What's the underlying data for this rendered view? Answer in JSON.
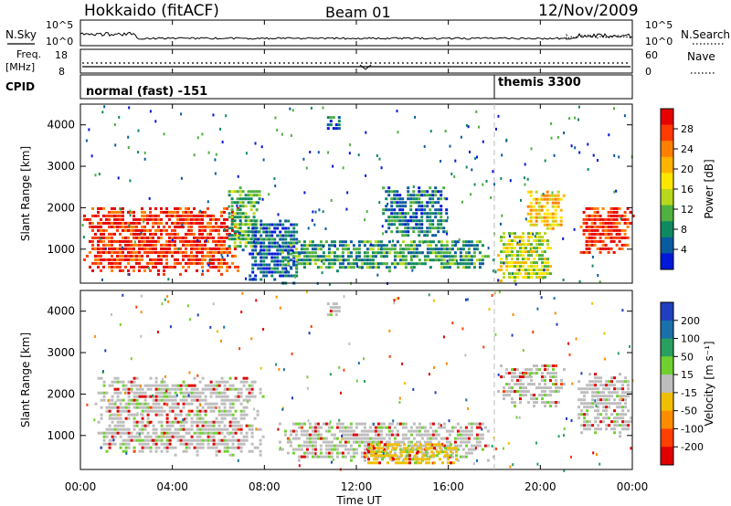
{
  "header": {
    "station": "Hokkaido (fitACF)",
    "beam": "Beam 01",
    "date": "12/Nov/2009"
  },
  "noise_panel": {
    "left_label": "N.Sky",
    "right_label": "N.Search",
    "left_ticks": [
      "10^5",
      "10^0"
    ],
    "right_ticks": [
      "10^5",
      "10^0"
    ]
  },
  "freq_panel": {
    "left_label_line1": "Freq.",
    "left_label_line2": "[MHz]",
    "left_ticks": [
      "18",
      "8"
    ],
    "right_label": "Nave",
    "right_ticks": [
      "60",
      "0"
    ]
  },
  "cpid_panel": {
    "label": "CPID",
    "segments": [
      {
        "name": "normal (fast) -151",
        "start_hour": 0,
        "end_hour": 18
      },
      {
        "name": "themis 3300",
        "start_hour": 18,
        "end_hour": 24
      }
    ]
  },
  "time_axis": {
    "label": "Time UT",
    "ticks": [
      "00:00",
      "04:00",
      "08:00",
      "12:00",
      "16:00",
      "20:00",
      "00:00"
    ]
  },
  "range_axis": {
    "label": "Slant Range [km]",
    "ticks": [
      "1000",
      "2000",
      "3000",
      "4000"
    ]
  },
  "power_scale": {
    "title": "Power [dB]",
    "labels": [
      "28",
      "24",
      "20",
      "16",
      "12",
      "8",
      "4"
    ],
    "colors": [
      "#e60000",
      "#ff3a00",
      "#ff8000",
      "#ffb400",
      "#ffe600",
      "#b8d81e",
      "#50b040",
      "#0f8a60",
      "#0a5aa0",
      "#0018d8"
    ]
  },
  "velocity_scale": {
    "title": "Velocity [m s⁻¹]",
    "labels": [
      "200",
      "100",
      "50",
      "15",
      "-15",
      "-50",
      "-100",
      "-200"
    ],
    "colors": [
      "#1f3fc0",
      "#1a70a8",
      "#2aa060",
      "#70d030",
      "#bdbdbd",
      "#f0c000",
      "#ff8c00",
      "#ff4000",
      "#e00000"
    ]
  },
  "chart_data": [
    {
      "type": "heatmap",
      "name": "power",
      "x_label": "Time UT",
      "y_label": "Slant Range [km]",
      "x_range_hours": [
        0,
        24
      ],
      "y_range_km": [
        180,
        4500
      ],
      "scale_label": "Power [dB]",
      "regions": [
        {
          "t": [
            0.0,
            7.0
          ],
          "r": [
            400,
            2100
          ],
          "value_db": 28
        },
        {
          "t": [
            6.3,
            7.8
          ],
          "r": [
            900,
            2600
          ],
          "value_db": 12
        },
        {
          "t": [
            7.2,
            9.5
          ],
          "r": [
            200,
            1800
          ],
          "value_db": 6
        },
        {
          "t": [
            8.5,
            18.0
          ],
          "r": [
            500,
            1300
          ],
          "value_db": 10
        },
        {
          "t": [
            13.0,
            16.0
          ],
          "r": [
            1300,
            2600
          ],
          "value_db": 8
        },
        {
          "t": [
            10.6,
            11.3
          ],
          "r": [
            3900,
            4300
          ],
          "value_db": 6
        },
        {
          "t": [
            18.0,
            20.5
          ],
          "r": [
            200,
            1500
          ],
          "value_db": 16
        },
        {
          "t": [
            19.3,
            21.0
          ],
          "r": [
            1500,
            2500
          ],
          "value_db": 20
        },
        {
          "t": [
            21.6,
            24.0
          ],
          "r": [
            900,
            2100
          ],
          "value_db": 28
        }
      ]
    },
    {
      "type": "heatmap",
      "name": "velocity",
      "x_label": "Time UT",
      "y_label": "Slant Range [km]",
      "x_range_hours": [
        0,
        24
      ],
      "y_range_km": [
        180,
        4500
      ],
      "scale_label": "Velocity [m s⁻¹]",
      "regions": [
        {
          "t": [
            0.5,
            8.0
          ],
          "r": [
            500,
            2500
          ],
          "value_mps": 0
        },
        {
          "t": [
            8.5,
            18.0
          ],
          "r": [
            400,
            1400
          ],
          "value_mps": 0
        },
        {
          "t": [
            12.0,
            16.5
          ],
          "r": [
            300,
            900
          ],
          "value_mps": -50
        },
        {
          "t": [
            18.0,
            21.0
          ],
          "r": [
            1700,
            2800
          ],
          "value_mps": 0
        },
        {
          "t": [
            21.5,
            24.0
          ],
          "r": [
            1000,
            2600
          ],
          "value_mps": 0
        },
        {
          "t": [
            10.6,
            11.3
          ],
          "r": [
            3900,
            4300
          ],
          "value_mps": 0
        }
      ]
    }
  ]
}
